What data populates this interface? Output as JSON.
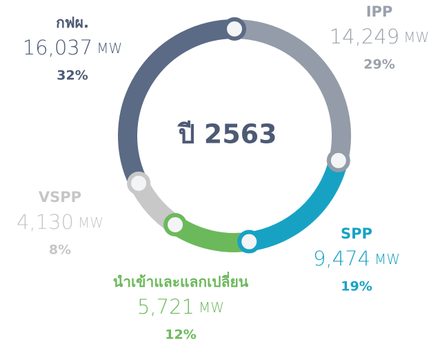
{
  "chart_data": {
    "type": "donut",
    "center_label": "ปี 2563",
    "unit": "MW",
    "categories": [
      "IPP",
      "SPP",
      "นำเข้าและแลกเปลี่ยน",
      "VSPP",
      "กฟผ."
    ],
    "values": [
      14249,
      9474,
      5721,
      4130,
      16037
    ],
    "value_labels": [
      "14,249",
      "9,474",
      "5,721",
      "4,130",
      "16,037"
    ],
    "percent_labels": [
      "29%",
      "19%",
      "12%",
      "8%",
      "32%"
    ],
    "colors": [
      "#939ca8",
      "#17a2c4",
      "#6cb95c",
      "#c8c8c8",
      "#5b6a85"
    ]
  }
}
